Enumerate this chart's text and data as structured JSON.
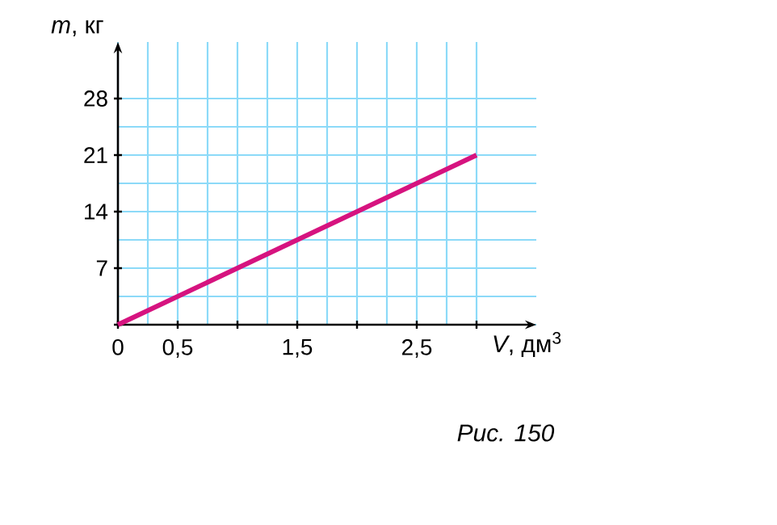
{
  "chart_data": {
    "type": "line",
    "xlabel": "*V*, дм$^{3}$",
    "ylabel": "*m*, кг",
    "x": [
      0,
      3
    ],
    "series": [
      {
        "color": "#d6137f",
        "values": [
          0,
          21
        ]
      }
    ],
    "xlim": [
      0,
      3.5
    ],
    "ylim": [
      0,
      35
    ],
    "xticks": [
      {
        "value": 0,
        "label": "0"
      },
      {
        "value": 0.5,
        "label": "0,5"
      },
      {
        "value": 1,
        "label": null
      },
      {
        "value": 1.5,
        "label": "1,5"
      },
      {
        "value": 2,
        "label": null
      },
      {
        "value": 2.5,
        "label": "2,5"
      },
      {
        "value": 3,
        "label": null
      }
    ],
    "yticks": [
      {
        "value": 0,
        "label": null
      },
      7,
      14,
      21,
      28
    ],
    "grid": true,
    "marker": "none",
    "line_style": "solid",
    "annotations": [
      "*Рис. 150*"
    ]
  }
}
